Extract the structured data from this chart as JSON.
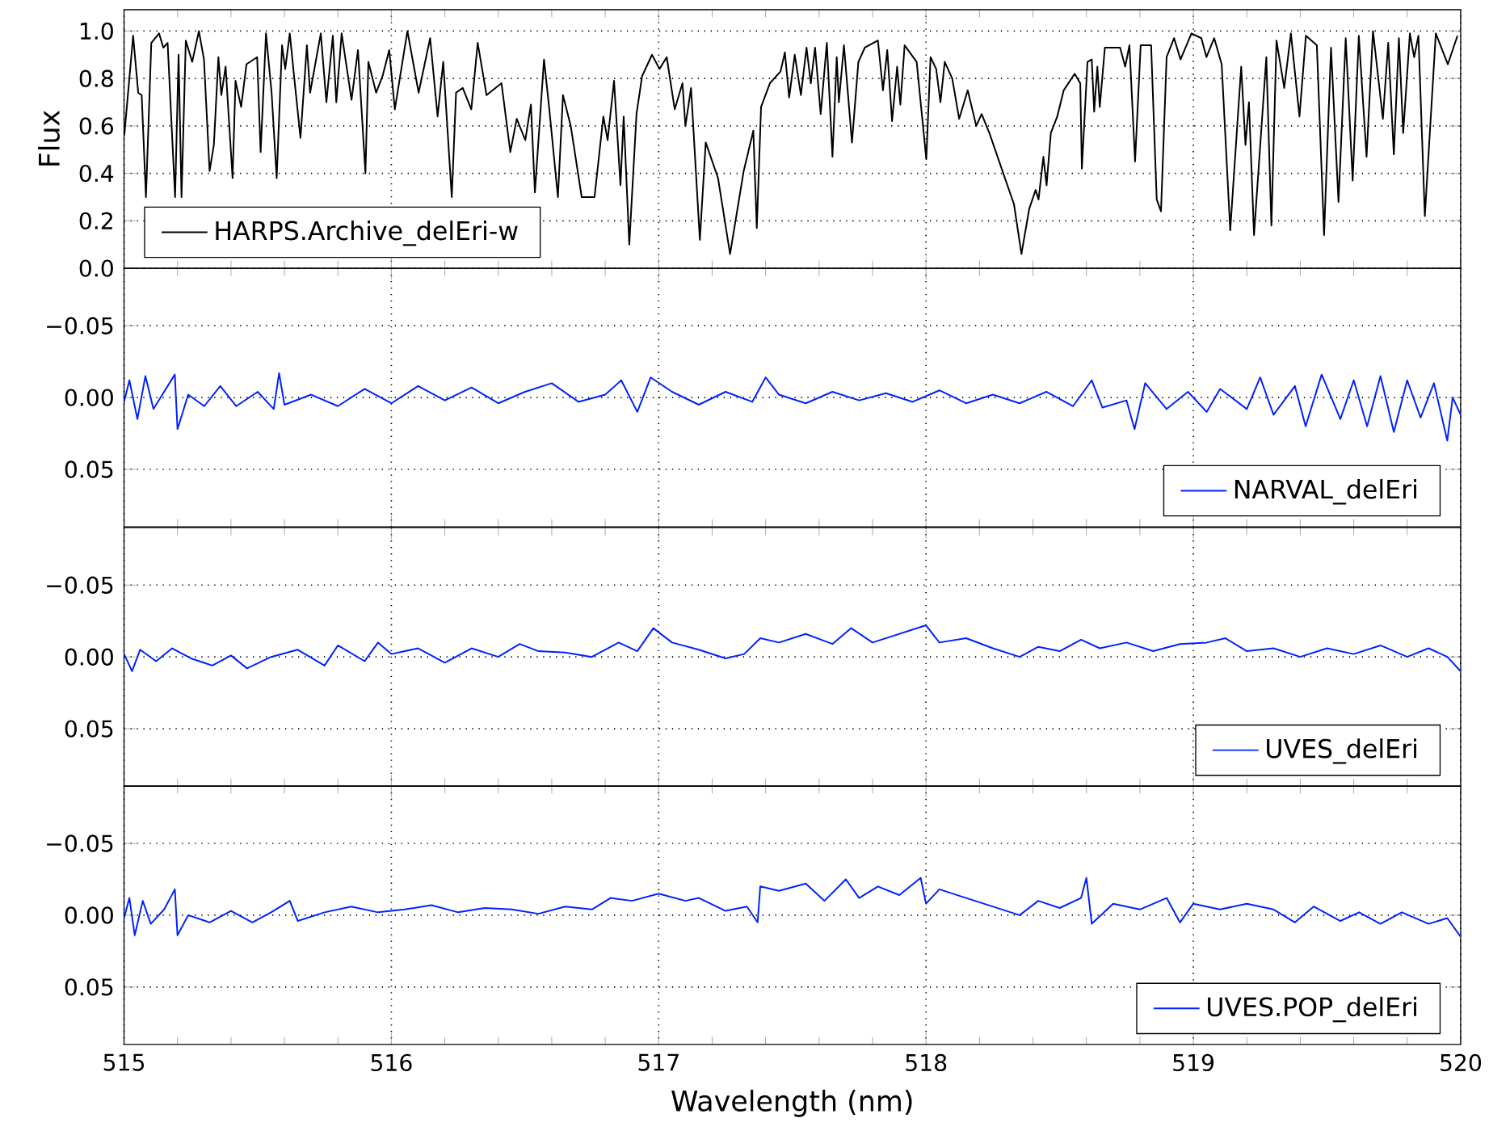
{
  "chart_data": [
    {
      "type": "line",
      "ylabel": "Flux",
      "tick_labels": "y",
      "grid": true,
      "legend": "bottom left",
      "xlim": [
        515,
        520
      ],
      "xticks": [
        515,
        516,
        517,
        518,
        519,
        520
      ],
      "ylim": [
        0,
        1.09
      ],
      "yticks": [
        {
          "value": 0,
          "label": "0.0"
        },
        {
          "value": 0.2,
          "label": "0.2"
        },
        {
          "value": 0.4,
          "label": "0.4"
        },
        {
          "value": 0.6,
          "label": "0.6"
        },
        {
          "value": 0.8,
          "label": "0.8"
        },
        {
          "value": 1.0,
          "label": "1.0"
        }
      ],
      "x": [
        515.001,
        515.034,
        515.053,
        515.066,
        515.082,
        515.102,
        515.131,
        515.147,
        515.163,
        515.191,
        515.204,
        515.215,
        515.231,
        515.255,
        515.28,
        515.299,
        515.32,
        515.336,
        515.353,
        515.364,
        515.38,
        515.406,
        515.417,
        515.438,
        515.458,
        515.498,
        515.511,
        515.531,
        515.552,
        515.571,
        515.591,
        515.603,
        515.62,
        515.636,
        515.66,
        515.684,
        515.696,
        515.736,
        515.757,
        515.781,
        515.794,
        515.814,
        515.851,
        515.875,
        515.903,
        515.914,
        515.943,
        515.967,
        515.992,
        516.013,
        516.06,
        516.102,
        516.145,
        516.173,
        516.194,
        516.226,
        516.242,
        516.267,
        516.299,
        516.323,
        516.356,
        516.412,
        516.445,
        516.469,
        516.501,
        516.522,
        516.537,
        516.571,
        516.59,
        516.623,
        516.642,
        516.671,
        516.712,
        516.76,
        516.793,
        516.809,
        516.833,
        516.857,
        516.869,
        516.89,
        516.917,
        516.938,
        516.975,
        517.003,
        517.03,
        517.06,
        517.089,
        517.1,
        517.121,
        517.154,
        517.176,
        517.222,
        517.267,
        517.318,
        517.354,
        517.367,
        517.383,
        517.416,
        517.456,
        517.472,
        517.488,
        517.509,
        517.532,
        517.553,
        517.569,
        517.585,
        517.606,
        517.629,
        517.65,
        517.666,
        517.674,
        517.693,
        517.723,
        517.747,
        517.771,
        517.82,
        517.839,
        517.855,
        517.873,
        517.892,
        517.904,
        517.92,
        517.965,
        518.001,
        518.017,
        518.038,
        518.054,
        518.07,
        518.098,
        518.124,
        518.156,
        518.188,
        518.208,
        518.237,
        518.289,
        518.329,
        518.357,
        518.386,
        518.41,
        518.421,
        518.439,
        518.451,
        518.467,
        518.491,
        518.515,
        518.556,
        518.577,
        518.583,
        518.604,
        518.62,
        518.629,
        518.641,
        518.65,
        518.669,
        518.726,
        518.745,
        518.761,
        518.782,
        518.803,
        518.842,
        518.863,
        518.879,
        518.9,
        518.928,
        518.952,
        518.993,
        519.03,
        519.049,
        519.078,
        519.106,
        519.138,
        519.179,
        519.195,
        519.208,
        519.227,
        519.273,
        519.292,
        519.311,
        519.34,
        519.365,
        519.397,
        519.421,
        519.462,
        519.489,
        519.515,
        519.543,
        519.57,
        519.596,
        519.619,
        519.648,
        519.672,
        519.709,
        519.729,
        519.75,
        519.769,
        519.785,
        519.81,
        519.826,
        519.842,
        519.866,
        519.907,
        519.952,
        519.988
      ],
      "series": [
        {
          "name": "HARPS.Archive_delEri-w",
          "color": "#000000",
          "values": [
            0.56,
            0.98,
            0.74,
            0.73,
            0.3,
            0.95,
            0.99,
            0.93,
            0.95,
            0.3,
            0.9,
            0.3,
            0.96,
            0.87,
            1.0,
            0.88,
            0.41,
            0.52,
            0.89,
            0.73,
            0.85,
            0.38,
            0.79,
            0.68,
            0.86,
            0.89,
            0.49,
            0.99,
            0.74,
            0.38,
            0.94,
            0.84,
            0.99,
            0.81,
            0.55,
            0.94,
            0.74,
            0.99,
            0.7,
            0.98,
            0.7,
            0.99,
            0.71,
            0.92,
            0.4,
            0.87,
            0.74,
            0.81,
            0.92,
            0.67,
            1.0,
            0.74,
            0.97,
            0.64,
            0.87,
            0.3,
            0.74,
            0.76,
            0.67,
            0.95,
            0.73,
            0.78,
            0.49,
            0.63,
            0.54,
            0.69,
            0.32,
            0.88,
            0.68,
            0.3,
            0.73,
            0.6,
            0.3,
            0.3,
            0.64,
            0.54,
            0.79,
            0.35,
            0.64,
            0.1,
            0.65,
            0.81,
            0.9,
            0.84,
            0.89,
            0.67,
            0.78,
            0.6,
            0.76,
            0.12,
            0.53,
            0.38,
            0.06,
            0.41,
            0.58,
            0.17,
            0.68,
            0.78,
            0.83,
            0.91,
            0.72,
            0.9,
            0.73,
            0.93,
            0.78,
            0.93,
            0.65,
            0.95,
            0.47,
            0.89,
            0.7,
            0.94,
            0.53,
            0.87,
            0.93,
            0.96,
            0.75,
            0.92,
            0.62,
            0.85,
            0.69,
            0.94,
            0.87,
            0.46,
            0.89,
            0.84,
            0.7,
            0.87,
            0.8,
            0.63,
            0.75,
            0.6,
            0.65,
            0.57,
            0.4,
            0.27,
            0.06,
            0.25,
            0.33,
            0.29,
            0.47,
            0.35,
            0.57,
            0.64,
            0.75,
            0.82,
            0.78,
            0.42,
            0.87,
            0.88,
            0.66,
            0.85,
            0.68,
            0.93,
            0.93,
            0.85,
            0.94,
            0.45,
            0.94,
            0.94,
            0.29,
            0.24,
            0.89,
            0.97,
            0.88,
            0.99,
            0.97,
            0.89,
            0.97,
            0.86,
            0.16,
            0.85,
            0.52,
            0.7,
            0.14,
            0.89,
            0.18,
            0.96,
            0.76,
            0.99,
            0.64,
            0.98,
            0.94,
            0.14,
            0.93,
            0.28,
            0.97,
            0.37,
            0.98,
            0.47,
            1.0,
            0.63,
            0.95,
            0.48,
            0.97,
            0.57,
            0.99,
            0.89,
            0.98,
            0.22,
            0.99,
            0.86,
            0.98
          ]
        }
      ]
    },
    {
      "type": "line",
      "tick_labels": "y",
      "grid": true,
      "legend": "bottom right",
      "xlim": [
        515,
        520
      ],
      "xticks": [
        515,
        516,
        517,
        518,
        519,
        520
      ],
      "ylim": [
        0.09,
        -0.09
      ],
      "yticks": [
        {
          "value": -0.05,
          "label": "−0.05"
        },
        {
          "value": 0,
          "label": "0.00"
        },
        {
          "value": 0.05,
          "label": "0.05"
        }
      ],
      "x": [
        515.0,
        515.02,
        515.05,
        515.08,
        515.11,
        515.15,
        515.19,
        515.2,
        515.24,
        515.3,
        515.36,
        515.42,
        515.5,
        515.56,
        515.58,
        515.6,
        515.7,
        515.8,
        515.9,
        516.0,
        516.1,
        516.2,
        516.3,
        516.4,
        516.5,
        516.6,
        516.7,
        516.8,
        516.86,
        516.92,
        516.97,
        517.05,
        517.15,
        517.25,
        517.35,
        517.4,
        517.45,
        517.55,
        517.65,
        517.75,
        517.85,
        517.95,
        518.05,
        518.15,
        518.25,
        518.35,
        518.45,
        518.55,
        518.62,
        518.66,
        518.75,
        518.78,
        518.82,
        518.9,
        518.98,
        519.05,
        519.1,
        519.2,
        519.25,
        519.3,
        519.38,
        519.42,
        519.48,
        519.55,
        519.6,
        519.65,
        519.7,
        519.75,
        519.8,
        519.85,
        519.9,
        519.95,
        519.97,
        520.0
      ],
      "series": [
        {
          "name": "NARVAL_delEri",
          "color": "#0022ff",
          "values": [
            0.003,
            -0.012,
            0.015,
            -0.015,
            0.008,
            -0.004,
            -0.016,
            0.022,
            -0.002,
            0.006,
            -0.008,
            0.006,
            -0.004,
            0.008,
            -0.017,
            0.005,
            -0.002,
            0.006,
            -0.006,
            0.004,
            -0.008,
            0.002,
            -0.007,
            0.004,
            -0.004,
            -0.01,
            0.003,
            -0.002,
            -0.012,
            0.01,
            -0.014,
            -0.004,
            0.005,
            -0.004,
            0.003,
            -0.014,
            -0.002,
            0.004,
            -0.004,
            0.002,
            -0.003,
            0.003,
            -0.005,
            0.004,
            -0.002,
            0.004,
            -0.004,
            0.006,
            -0.012,
            0.007,
            0.002,
            0.022,
            -0.01,
            0.008,
            -0.004,
            0.01,
            -0.006,
            0.008,
            -0.014,
            0.012,
            -0.008,
            0.02,
            -0.016,
            0.015,
            -0.012,
            0.02,
            -0.015,
            0.024,
            -0.012,
            0.014,
            -0.01,
            0.03,
            0.0,
            0.012
          ]
        }
      ]
    },
    {
      "type": "line",
      "tick_labels": "y",
      "grid": true,
      "legend": "bottom right",
      "xlim": [
        515,
        520
      ],
      "xticks": [
        515,
        516,
        517,
        518,
        519,
        520
      ],
      "ylim": [
        0.09,
        -0.09
      ],
      "yticks": [
        {
          "value": -0.05,
          "label": "−0.05"
        },
        {
          "value": 0,
          "label": "0.00"
        },
        {
          "value": 0.05,
          "label": "0.05"
        }
      ],
      "x": [
        515.0,
        515.03,
        515.06,
        515.12,
        515.18,
        515.25,
        515.33,
        515.4,
        515.46,
        515.55,
        515.65,
        515.75,
        515.8,
        515.9,
        515.95,
        516.0,
        516.1,
        516.2,
        516.3,
        516.4,
        516.48,
        516.55,
        516.65,
        516.75,
        516.85,
        516.92,
        516.98,
        517.05,
        517.15,
        517.25,
        517.32,
        517.38,
        517.45,
        517.55,
        517.65,
        517.72,
        517.8,
        517.9,
        518.0,
        518.05,
        518.15,
        518.25,
        518.35,
        518.42,
        518.5,
        518.58,
        518.65,
        518.75,
        518.85,
        518.95,
        519.05,
        519.12,
        519.2,
        519.3,
        519.4,
        519.5,
        519.6,
        519.7,
        519.8,
        519.88,
        519.95,
        520.0
      ],
      "series": [
        {
          "name": "UVES_delEri",
          "color": "#0022ff",
          "values": [
            -0.002,
            0.01,
            -0.005,
            0.003,
            -0.006,
            0.001,
            0.006,
            -0.001,
            0.008,
            0.0,
            -0.005,
            0.006,
            -0.008,
            0.003,
            -0.01,
            -0.002,
            -0.006,
            0.004,
            -0.006,
            0.0,
            -0.009,
            -0.004,
            -0.003,
            0.0,
            -0.01,
            -0.004,
            -0.02,
            -0.01,
            -0.005,
            0.001,
            -0.002,
            -0.013,
            -0.01,
            -0.016,
            -0.009,
            -0.02,
            -0.01,
            -0.016,
            -0.022,
            -0.01,
            -0.013,
            -0.006,
            0.0,
            -0.007,
            -0.004,
            -0.012,
            -0.006,
            -0.01,
            -0.004,
            -0.009,
            -0.01,
            -0.013,
            -0.004,
            -0.006,
            0.0,
            -0.006,
            -0.002,
            -0.008,
            0.0,
            -0.006,
            0.0,
            0.01
          ]
        }
      ]
    },
    {
      "type": "line",
      "xlabel": "Wavelength (nm)",
      "grid": true,
      "legend": "bottom right",
      "xlim": [
        515,
        520
      ],
      "xticks": [
        515,
        516,
        517,
        518,
        519,
        520
      ],
      "ylim": [
        0.09,
        -0.09
      ],
      "yticks": [
        {
          "value": -0.05,
          "label": "−0.05"
        },
        {
          "value": 0,
          "label": "0.00"
        },
        {
          "value": 0.05,
          "label": "0.05"
        }
      ],
      "x": [
        515.0,
        515.02,
        515.04,
        515.07,
        515.1,
        515.15,
        515.19,
        515.2,
        515.24,
        515.32,
        515.4,
        515.48,
        515.55,
        515.62,
        515.65,
        515.75,
        515.85,
        515.95,
        516.05,
        516.15,
        516.25,
        516.35,
        516.45,
        516.55,
        516.65,
        516.75,
        516.82,
        516.9,
        517.0,
        517.1,
        517.15,
        517.25,
        517.33,
        517.37,
        517.38,
        517.45,
        517.55,
        517.62,
        517.7,
        517.75,
        517.82,
        517.9,
        517.98,
        518.0,
        518.05,
        518.15,
        518.25,
        518.35,
        518.42,
        518.5,
        518.58,
        518.6,
        518.62,
        518.7,
        518.8,
        518.9,
        518.95,
        519.0,
        519.1,
        519.2,
        519.3,
        519.38,
        519.45,
        519.55,
        519.62,
        519.7,
        519.78,
        519.88,
        519.95,
        520.0
      ],
      "series": [
        {
          "name": "UVES.POP_delEri",
          "color": "#0022ff",
          "values": [
            0.002,
            -0.012,
            0.014,
            -0.01,
            0.006,
            -0.004,
            -0.018,
            0.014,
            0.0,
            0.005,
            -0.003,
            0.005,
            -0.002,
            -0.01,
            0.004,
            -0.002,
            -0.006,
            -0.002,
            -0.004,
            -0.007,
            -0.002,
            -0.005,
            -0.004,
            -0.001,
            -0.006,
            -0.004,
            -0.012,
            -0.01,
            -0.015,
            -0.01,
            -0.012,
            -0.003,
            -0.006,
            0.005,
            -0.02,
            -0.017,
            -0.022,
            -0.01,
            -0.025,
            -0.012,
            -0.02,
            -0.014,
            -0.026,
            -0.008,
            -0.018,
            -0.012,
            -0.006,
            0.0,
            -0.01,
            -0.005,
            -0.012,
            -0.026,
            0.006,
            -0.008,
            -0.004,
            -0.012,
            0.005,
            -0.008,
            -0.004,
            -0.008,
            -0.004,
            0.005,
            -0.006,
            0.004,
            -0.002,
            0.006,
            -0.002,
            0.006,
            0.002,
            0.015
          ]
        }
      ]
    }
  ]
}
